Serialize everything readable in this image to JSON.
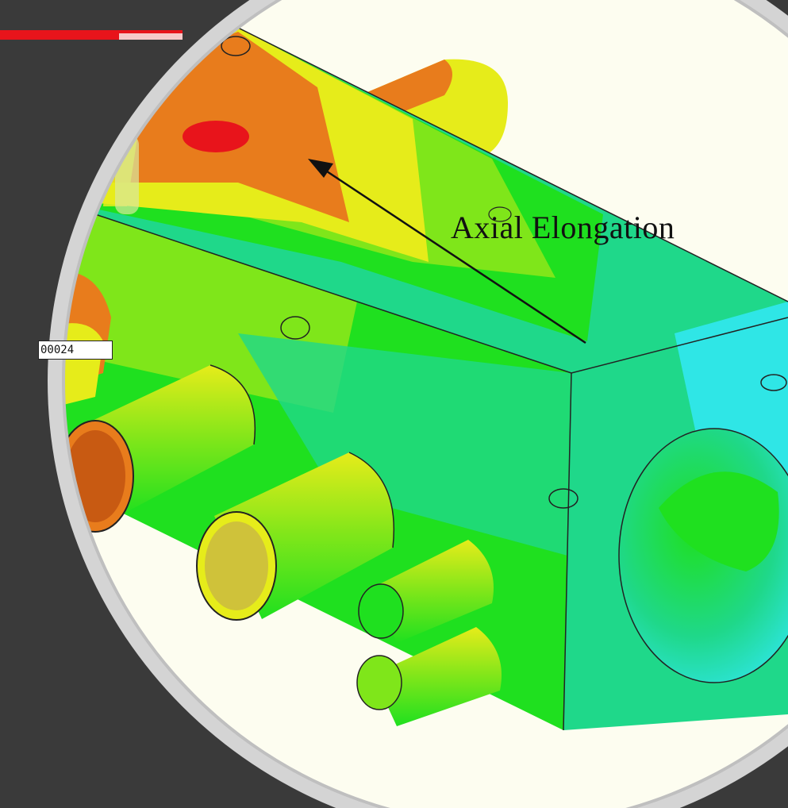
{
  "annotation": {
    "label": "Axial Elongation"
  },
  "readout": {
    "value": "00024"
  },
  "colors": {
    "background": "#3a3a3a",
    "accent_bar": "#e8141b",
    "frame_ring": "#cfcfcf",
    "canvas": "#fdfdf0",
    "contour_max": "#e8141b",
    "contour_high": "#e87c1c",
    "contour_mid_high": "#e6ec1a",
    "contour_mid": "#7fe61a",
    "contour_low": "#1fe01f",
    "contour_lower": "#1fd88a",
    "contour_min": "#2fe6e6"
  },
  "icons": {
    "arrow": "arrow-upleft-icon"
  }
}
